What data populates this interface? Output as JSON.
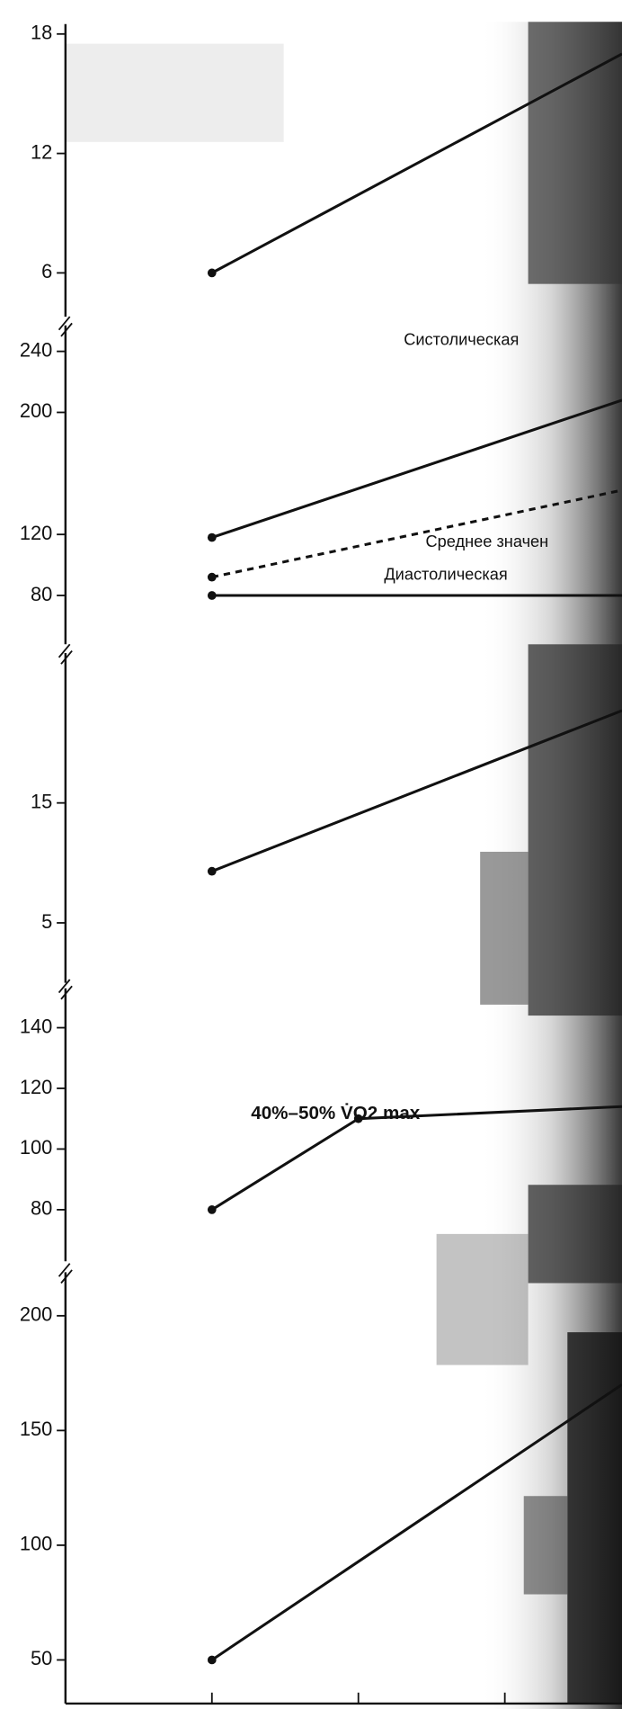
{
  "chart_data": [
    {
      "type": "line",
      "x": [
        1,
        3.8
      ],
      "xlim": [
        0,
        3.8
      ],
      "ylim": [
        3.8,
        18.5
      ],
      "yticks": [
        6,
        12,
        18
      ],
      "series": [
        {
          "color": "#111111",
          "values": [
            6,
            17
          ]
        }
      ]
    },
    {
      "type": "line",
      "x": [
        1,
        3.8
      ],
      "xlim": [
        0,
        3.8
      ],
      "ylim": [
        48,
        257
      ],
      "yticks": [
        80,
        120,
        200,
        240
      ],
      "series": [
        {
          "name": "Систолическая",
          "color": "#111111",
          "values": [
            118,
            208
          ]
        },
        {
          "name": "Среднее значен",
          "color": "#111111",
          "style": "dashed",
          "values": [
            92,
            149
          ]
        },
        {
          "name": "Диастолическая",
          "color": "#111111",
          "values": [
            80,
            80
          ]
        }
      ]
    },
    {
      "type": "line",
      "x": [
        1,
        3.8
      ],
      "xlim": [
        0,
        3.8
      ],
      "ylim": [
        0,
        27.5
      ],
      "yticks": [
        5,
        15
      ],
      "series": [
        {
          "color": "#111111",
          "values": [
            9.3,
            22.7
          ]
        }
      ]
    },
    {
      "type": "line",
      "x": [
        1,
        2,
        3.8
      ],
      "xlim": [
        0,
        3.8
      ],
      "ylim": [
        63,
        153
      ],
      "yticks": [
        80,
        100,
        120,
        140
      ],
      "annotation": "40%–50% V̇O2 max",
      "series": [
        {
          "color": "#111111",
          "values": [
            80,
            110,
            114
          ]
        }
      ]
    },
    {
      "type": "line",
      "x": [
        1,
        3.8
      ],
      "xlim": [
        0,
        3.8
      ],
      "ylim": [
        31,
        219
      ],
      "yticks": [
        50,
        100,
        150,
        200
      ],
      "xticks": [
        1,
        2,
        3
      ],
      "series": [
        {
          "color": "#111111",
          "values": [
            50,
            170
          ]
        }
      ]
    }
  ]
}
